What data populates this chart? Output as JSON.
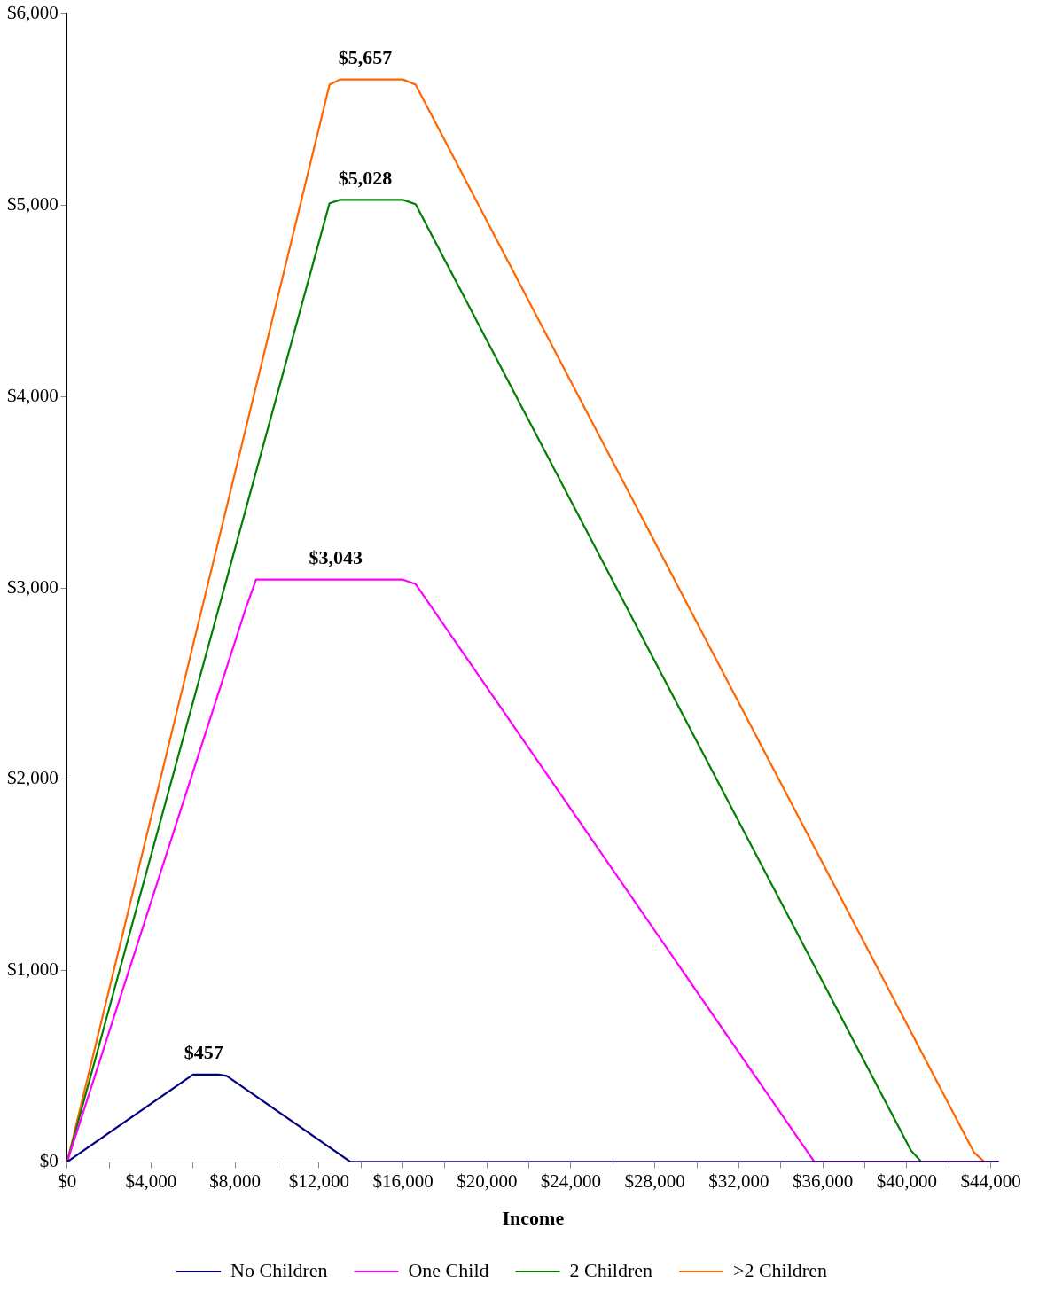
{
  "chart_data": {
    "type": "line",
    "xlabel": "Income",
    "series": [
      {
        "name": "No Children",
        "color": "#000080",
        "x": [
          0,
          6000,
          7200,
          7600,
          13500,
          44400
        ],
        "values": [
          0,
          457,
          457,
          450,
          0,
          0
        ]
      },
      {
        "name": "One Child",
        "color": "#ff00ff",
        "x": [
          0,
          8500,
          9000,
          16000,
          16600,
          35600,
          44400
        ],
        "values": [
          0,
          2890,
          3043,
          3043,
          3020,
          0,
          0
        ]
      },
      {
        "name": "2 Children",
        "color": "#008000",
        "x": [
          0,
          12500,
          13000,
          16000,
          16600,
          40200,
          40700,
          44400
        ],
        "values": [
          0,
          5010,
          5028,
          5028,
          5005,
          60,
          0,
          0
        ]
      },
      {
        "name": ">2 Children",
        "color": "#ff6600",
        "x": [
          0,
          12500,
          13000,
          16000,
          16600,
          43200,
          43700,
          44400
        ],
        "values": [
          0,
          5630,
          5657,
          5657,
          5630,
          50,
          0,
          0
        ]
      }
    ],
    "xlim": [
      0,
      44400
    ],
    "xticks": [
      {
        "value": 0,
        "label": "$0"
      },
      {
        "value": 2000,
        "label": null
      },
      {
        "value": 4000,
        "label": "$4,000"
      },
      {
        "value": 6000,
        "label": null
      },
      {
        "value": 8000,
        "label": "$8,000"
      },
      {
        "value": 10000,
        "label": null
      },
      {
        "value": 12000,
        "label": "$12,000"
      },
      {
        "value": 14000,
        "label": null
      },
      {
        "value": 16000,
        "label": "$16,000"
      },
      {
        "value": 18000,
        "label": null
      },
      {
        "value": 20000,
        "label": "$20,000"
      },
      {
        "value": 22000,
        "label": null
      },
      {
        "value": 24000,
        "label": "$24,000"
      },
      {
        "value": 26000,
        "label": null
      },
      {
        "value": 28000,
        "label": "$28,000"
      },
      {
        "value": 30000,
        "label": null
      },
      {
        "value": 32000,
        "label": "$32,000"
      },
      {
        "value": 34000,
        "label": null
      },
      {
        "value": 36000,
        "label": "$36,000"
      },
      {
        "value": 38000,
        "label": null
      },
      {
        "value": 40000,
        "label": "$40,000"
      },
      {
        "value": 42000,
        "label": null
      },
      {
        "value": 44000,
        "label": "$44,000"
      }
    ],
    "ylim": [
      0,
      6000
    ],
    "yticks": [
      {
        "value": 0,
        "label": "$0"
      },
      {
        "value": 1000,
        "label": "$1,000"
      },
      {
        "value": 2000,
        "label": "$2,000"
      },
      {
        "value": 3000,
        "label": "$3,000"
      },
      {
        "value": 4000,
        "label": "$4,000"
      },
      {
        "value": 5000,
        "label": "$5,000"
      },
      {
        "value": 6000,
        "label": "$6,000"
      }
    ],
    "annotations": [
      {
        "text": "$457",
        "x": 6500,
        "y": 457
      },
      {
        "text": "$3,043",
        "x": 12800,
        "y": 3043
      },
      {
        "text": "$5,028",
        "x": 14200,
        "y": 5028
      },
      {
        "text": "$5,657",
        "x": 14200,
        "y": 5657
      }
    ],
    "grid": false,
    "legend": "bottom",
    "marker": "none",
    "line_style": "solid"
  }
}
